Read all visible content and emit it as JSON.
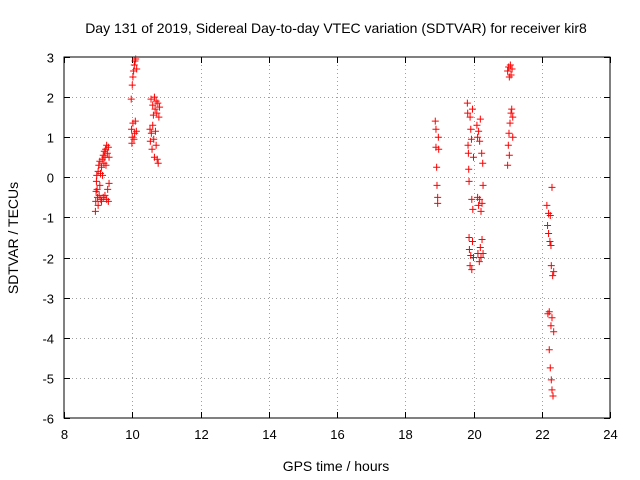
{
  "chart_data": {
    "type": "scatter",
    "title": "Day 131 of 2019, Sidereal Day-to-day VTEC variation (SDTVAR) for receiver kir8",
    "xlabel": "GPS time / hours",
    "ylabel": "SDTVAR / TECUs",
    "xlim": [
      8,
      24
    ],
    "ylim": [
      -6,
      3
    ],
    "xticks": [
      8,
      10,
      12,
      14,
      16,
      18,
      20,
      22,
      24
    ],
    "yticks": [
      -6,
      -5,
      -4,
      -3,
      -2,
      -1,
      0,
      1,
      2,
      3
    ],
    "xtick_labels": [
      "8",
      "10",
      "12",
      "14",
      "16",
      "18",
      "20",
      "22",
      "24"
    ],
    "ytick_labels": [
      "-6",
      "-5",
      "-4",
      "-3",
      "-2",
      "-1",
      "0",
      "1",
      "2",
      "3"
    ],
    "grid": true,
    "marker": "+",
    "color": "#ff0000",
    "series": [
      {
        "name": "SDTVAR",
        "points": [
          [
            8.92,
            -0.85
          ],
          [
            8.93,
            -0.6
          ],
          [
            8.94,
            -0.35
          ],
          [
            8.95,
            -0.1
          ],
          [
            8.96,
            0.05
          ],
          [
            8.97,
            -0.3
          ],
          [
            8.98,
            -0.5
          ],
          [
            9.0,
            0.15
          ],
          [
            9.0,
            -0.7
          ],
          [
            9.02,
            0.3
          ],
          [
            9.03,
            -0.45
          ],
          [
            9.05,
            0.4
          ],
          [
            9.05,
            -0.2
          ],
          [
            9.07,
            0.1
          ],
          [
            9.08,
            -0.55
          ],
          [
            9.1,
            0.25
          ],
          [
            9.1,
            -0.6
          ],
          [
            9.12,
            0.45
          ],
          [
            9.13,
            0.05
          ],
          [
            9.15,
            0.55
          ],
          [
            9.15,
            -0.5
          ],
          [
            9.17,
            0.35
          ],
          [
            9.18,
            0.65
          ],
          [
            9.2,
            0.5
          ],
          [
            9.2,
            -0.45
          ],
          [
            9.22,
            0.7
          ],
          [
            9.23,
            0.3
          ],
          [
            9.25,
            0.8
          ],
          [
            9.25,
            -0.55
          ],
          [
            9.27,
            0.6
          ],
          [
            9.28,
            -0.3
          ],
          [
            9.3,
            0.75
          ],
          [
            9.3,
            -0.6
          ],
          [
            9.32,
            0.5
          ],
          [
            9.32,
            -0.15
          ],
          [
            9.97,
            1.95
          ],
          [
            9.98,
            1.2
          ],
          [
            9.99,
            0.85
          ],
          [
            10.0,
            2.3
          ],
          [
            10.0,
            1.0
          ],
          [
            10.02,
            2.5
          ],
          [
            10.02,
            1.35
          ],
          [
            10.04,
            2.65
          ],
          [
            10.05,
            0.95
          ],
          [
            10.06,
            2.8
          ],
          [
            10.07,
            1.1
          ],
          [
            10.08,
            2.9
          ],
          [
            10.09,
            1.4
          ],
          [
            10.1,
            2.95
          ],
          [
            10.12,
            1.15
          ],
          [
            10.13,
            2.7
          ],
          [
            10.52,
            1.2
          ],
          [
            10.53,
            0.9
          ],
          [
            10.55,
            1.95
          ],
          [
            10.56,
            1.1
          ],
          [
            10.58,
            0.7
          ],
          [
            10.6,
            1.8
          ],
          [
            10.6,
            1.3
          ],
          [
            10.62,
            1.55
          ],
          [
            10.63,
            0.95
          ],
          [
            10.65,
            2.0
          ],
          [
            10.65,
            0.5
          ],
          [
            10.67,
            1.7
          ],
          [
            10.68,
            1.15
          ],
          [
            10.7,
            1.9
          ],
          [
            10.7,
            0.8
          ],
          [
            10.72,
            1.6
          ],
          [
            10.73,
            0.45
          ],
          [
            10.75,
            1.85
          ],
          [
            10.76,
            0.35
          ],
          [
            10.78,
            1.5
          ],
          [
            10.8,
            1.75
          ],
          [
            18.88,
            1.4
          ],
          [
            18.9,
            1.2
          ],
          [
            18.9,
            0.75
          ],
          [
            18.92,
            0.25
          ],
          [
            18.93,
            -0.2
          ],
          [
            18.95,
            -0.5
          ],
          [
            18.95,
            -0.65
          ],
          [
            18.97,
            1.0
          ],
          [
            18.98,
            0.7
          ],
          [
            19.82,
            1.85
          ],
          [
            19.83,
            1.6
          ],
          [
            19.84,
            0.8
          ],
          [
            19.85,
            0.6
          ],
          [
            19.86,
            0.2
          ],
          [
            19.87,
            -0.1
          ],
          [
            19.87,
            -1.5
          ],
          [
            19.88,
            -1.8
          ],
          [
            19.9,
            1.5
          ],
          [
            19.9,
            -2.2
          ],
          [
            19.92,
            1.2
          ],
          [
            19.92,
            -1.95
          ],
          [
            19.94,
            0.95
          ],
          [
            19.95,
            -0.55
          ],
          [
            19.95,
            -2.3
          ],
          [
            19.97,
            1.7
          ],
          [
            19.97,
            -1.6
          ],
          [
            19.98,
            -0.8
          ],
          [
            20.0,
            0.5
          ],
          [
            20.0,
            -2.0
          ],
          [
            20.1,
            1.3
          ],
          [
            20.12,
            1.0
          ],
          [
            20.12,
            -0.5
          ],
          [
            20.13,
            -1.9
          ],
          [
            20.15,
            1.15
          ],
          [
            20.15,
            -0.7
          ],
          [
            20.17,
            -2.1
          ],
          [
            20.18,
            0.9
          ],
          [
            20.18,
            -0.55
          ],
          [
            20.2,
            1.45
          ],
          [
            20.2,
            -1.75
          ],
          [
            20.22,
            -0.85
          ],
          [
            20.22,
            -2.0
          ],
          [
            20.24,
            0.6
          ],
          [
            20.25,
            -0.65
          ],
          [
            20.25,
            -1.55
          ],
          [
            20.27,
            0.35
          ],
          [
            20.28,
            -0.2
          ],
          [
            20.28,
            -1.9
          ],
          [
            21.0,
            2.65
          ],
          [
            21.0,
            0.3
          ],
          [
            21.02,
            0.8
          ],
          [
            21.03,
            2.75
          ],
          [
            21.04,
            1.1
          ],
          [
            21.05,
            2.5
          ],
          [
            21.05,
            0.55
          ],
          [
            21.07,
            1.35
          ],
          [
            21.08,
            2.8
          ],
          [
            21.1,
            1.6
          ],
          [
            21.1,
            2.55
          ],
          [
            21.12,
            1.7
          ],
          [
            21.13,
            2.7
          ],
          [
            21.15,
            1.5
          ],
          [
            21.15,
            1.0
          ],
          [
            22.15,
            -0.7
          ],
          [
            22.17,
            -1.2
          ],
          [
            22.18,
            -3.4
          ],
          [
            22.2,
            -0.9
          ],
          [
            22.2,
            -1.4
          ],
          [
            22.22,
            -3.35
          ],
          [
            22.22,
            -4.3
          ],
          [
            22.24,
            -1.6
          ],
          [
            22.25,
            -0.95
          ],
          [
            22.25,
            -4.75
          ],
          [
            22.27,
            -1.7
          ],
          [
            22.27,
            -3.7
          ],
          [
            22.28,
            -5.05
          ],
          [
            22.28,
            -2.2
          ],
          [
            22.3,
            -0.25
          ],
          [
            22.3,
            -3.5
          ],
          [
            22.3,
            -5.3
          ],
          [
            22.32,
            -2.45
          ],
          [
            22.33,
            -5.45
          ],
          [
            22.35,
            -2.35
          ],
          [
            22.35,
            -3.85
          ]
        ]
      }
    ]
  }
}
